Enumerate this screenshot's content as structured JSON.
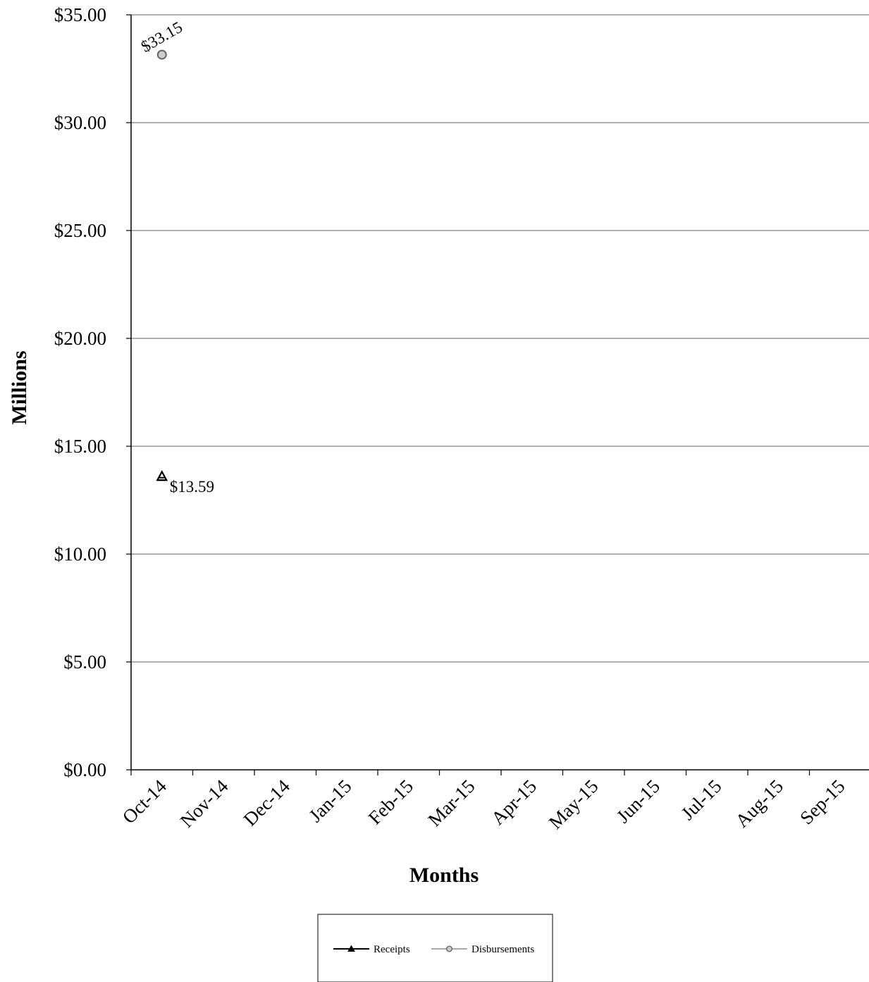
{
  "chart_data": {
    "type": "line",
    "title": "",
    "xlabel": "Months",
    "ylabel": "Millions",
    "categories": [
      "Oct-14",
      "Nov-14",
      "Dec-14",
      "Jan-15",
      "Feb-15",
      "Mar-15",
      "Apr-15",
      "May-15",
      "Jun-15",
      "Jul-15",
      "Aug-15",
      "Sep-15"
    ],
    "y_ticks": [
      "$0.00",
      "$5.00",
      "$10.00",
      "$15.00",
      "$20.00",
      "$25.00",
      "$30.00",
      "$35.00"
    ],
    "ylim": [
      0,
      35
    ],
    "grid": true,
    "legend_position": "bottom",
    "series": [
      {
        "name": "Receipts",
        "marker": "triangle",
        "color": "#000000",
        "values": [
          13.59,
          null,
          null,
          null,
          null,
          null,
          null,
          null,
          null,
          null,
          null,
          null
        ],
        "labels": [
          "$13.59",
          null,
          null,
          null,
          null,
          null,
          null,
          null,
          null,
          null,
          null,
          null
        ]
      },
      {
        "name": "Disbursements",
        "marker": "circle",
        "color": "#aaaaaa",
        "values": [
          33.15,
          null,
          null,
          null,
          null,
          null,
          null,
          null,
          null,
          null,
          null,
          null
        ],
        "labels": [
          "$33.15",
          null,
          null,
          null,
          null,
          null,
          null,
          null,
          null,
          null,
          null,
          null
        ]
      }
    ]
  }
}
